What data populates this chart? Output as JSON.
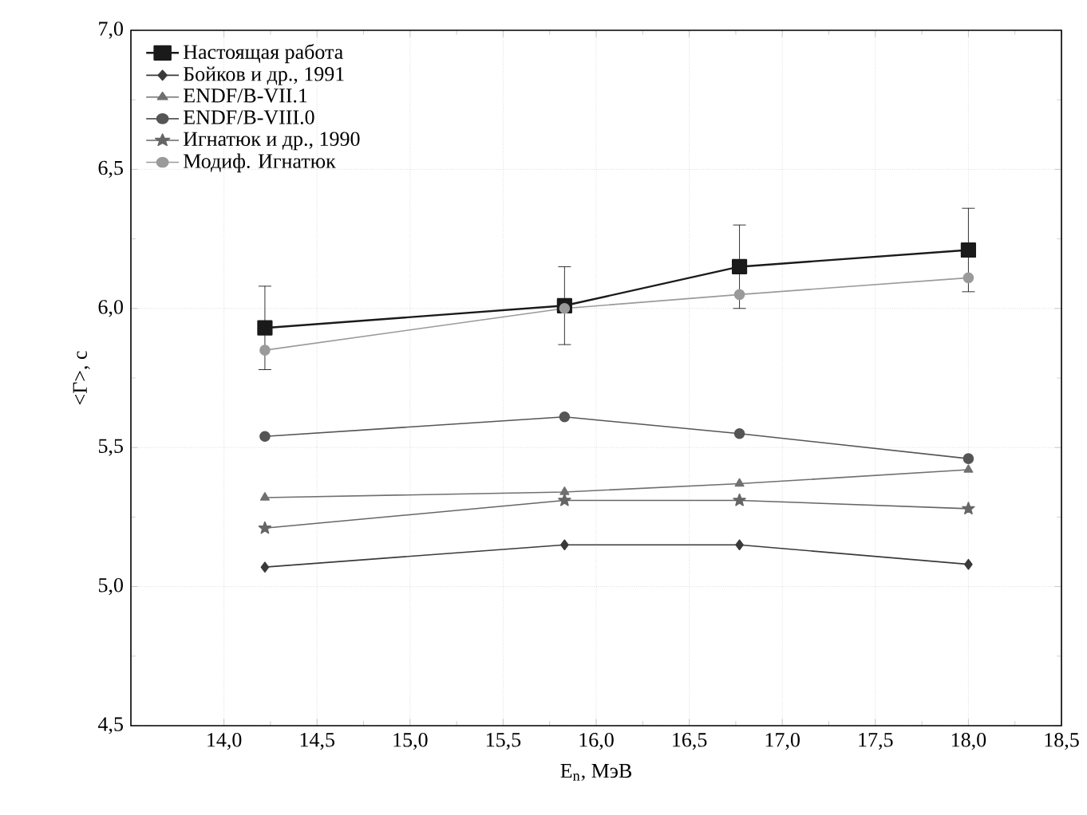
{
  "chart_data": {
    "type": "line",
    "xlabel": "E$_{n}$, МэВ",
    "ylabel": "<Γ>, с",
    "xlim": [
      13.5,
      18.5
    ],
    "xticks": [
      {
        "value": 14.0,
        "label": "14,0"
      },
      {
        "value": 14.5,
        "label": "14,5"
      },
      {
        "value": 15.0,
        "label": "15,0"
      },
      {
        "value": 15.5,
        "label": "15,5"
      },
      {
        "value": 16.0,
        "label": "16,0"
      },
      {
        "value": 16.5,
        "label": "16,5"
      },
      {
        "value": 17.0,
        "label": "17,0"
      },
      {
        "value": 17.5,
        "label": "17,5"
      },
      {
        "value": 18.0,
        "label": "18,0"
      },
      {
        "value": 18.5,
        "label": "18,5"
      }
    ],
    "ylim": [
      4.5,
      7.0
    ],
    "yticks": [
      {
        "value": 4.5,
        "label": "4,5"
      },
      {
        "value": 5.0,
        "label": "5,0"
      },
      {
        "value": 5.5,
        "label": "5,5"
      },
      {
        "value": 6.0,
        "label": "6,0"
      },
      {
        "value": 6.5,
        "label": "6,5"
      },
      {
        "value": 7.0,
        "label": "7,0"
      }
    ],
    "x": [
      14.22,
      15.83,
      16.77,
      18.0
    ],
    "grid": true,
    "legend": "top left",
    "line_style": "solid",
    "series": [
      {
        "name": "Настоящая работа",
        "color": "#1a1a1a",
        "marker": "square",
        "values": [
          5.93,
          6.01,
          6.15,
          6.21
        ],
        "errors": [
          0.15,
          0.14,
          0.15,
          0.15
        ]
      },
      {
        "name": "Бойков и др., 1991",
        "color": "#3a3a3a",
        "marker": "diamond",
        "values": [
          5.07,
          5.15,
          5.15,
          5.08
        ]
      },
      {
        "name": "ENDF/B-VII.1",
        "color": "#707070",
        "marker": "triangle",
        "values": [
          5.32,
          5.34,
          5.37,
          5.42
        ]
      },
      {
        "name": "ENDF/B-VIII.0",
        "color": "#555555",
        "marker": "circle",
        "values": [
          5.54,
          5.61,
          5.55,
          5.46
        ]
      },
      {
        "name": "Игнатюк и др., 1990",
        "color": "#666666",
        "marker": "star",
        "values": [
          5.21,
          5.31,
          5.31,
          5.28
        ]
      },
      {
        "name": "Модиф. Игнатюк",
        "color": "#9a9a9a",
        "marker": "circle",
        "values": [
          5.85,
          6.0,
          6.05,
          6.11
        ]
      }
    ]
  }
}
